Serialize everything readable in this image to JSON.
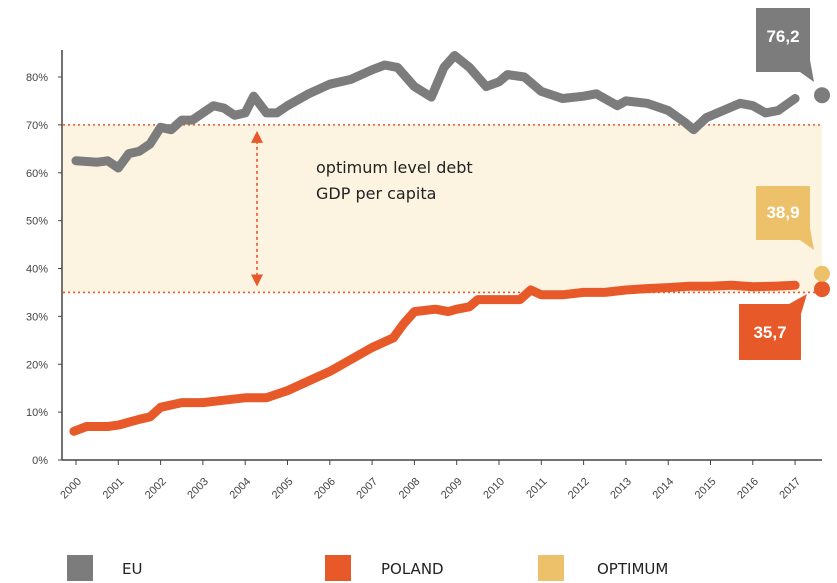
{
  "chart_data": {
    "type": "line",
    "title": "",
    "xlabel": "",
    "ylabel": "",
    "ylim": [
      0,
      80
    ],
    "y_ticks": [
      {
        "value": 0,
        "label": "0%"
      },
      {
        "value": 10,
        "label": "10%"
      },
      {
        "value": 20,
        "label": "20%"
      },
      {
        "value": 30,
        "label": "30%"
      },
      {
        "value": 40,
        "label": "40%"
      },
      {
        "value": 50,
        "label": "50%"
      },
      {
        "value": 60,
        "label": "60%"
      },
      {
        "value": 70,
        "label": "70%"
      },
      {
        "value": 80,
        "label": "80%"
      }
    ],
    "x_ticks": [
      "2000",
      "2001",
      "2002",
      "2003",
      "2004",
      "2005",
      "2006",
      "2007",
      "2008",
      "2009",
      "2010",
      "2011",
      "2012",
      "2013",
      "2014",
      "2015",
      "2016",
      "2017"
    ],
    "xlim": [
      2000,
      2017.5
    ],
    "grid": false,
    "legend_position": "bottom",
    "optimum_band": {
      "low": 35,
      "high": 70,
      "color": "#fdf3e1",
      "line_color": "#e8592a"
    },
    "annotation": {
      "lines": [
        "optimum level debt",
        "GDP per capita"
      ]
    },
    "series": [
      {
        "name": "EU",
        "color": "#7c7c7c",
        "points": [
          [
            2000.0,
            62.5
          ],
          [
            2000.5,
            62.2
          ],
          [
            2000.75,
            62.5
          ],
          [
            2001.0,
            61.0
          ],
          [
            2001.25,
            64.0
          ],
          [
            2001.5,
            64.5
          ],
          [
            2001.75,
            66.0
          ],
          [
            2002.0,
            69.5
          ],
          [
            2002.25,
            69.0
          ],
          [
            2002.5,
            71.0
          ],
          [
            2002.75,
            71.0
          ],
          [
            2003.0,
            72.5
          ],
          [
            2003.25,
            74.0
          ],
          [
            2003.5,
            73.5
          ],
          [
            2003.75,
            72.0
          ],
          [
            2004.0,
            72.5
          ],
          [
            2004.2,
            76.0
          ],
          [
            2004.5,
            72.5
          ],
          [
            2004.75,
            72.5
          ],
          [
            2005.0,
            74.0
          ],
          [
            2005.5,
            76.5
          ],
          [
            2006.0,
            78.5
          ],
          [
            2006.5,
            79.5
          ],
          [
            2007.0,
            81.5
          ],
          [
            2007.3,
            82.5
          ],
          [
            2007.6,
            82.0
          ],
          [
            2008.0,
            78.0
          ],
          [
            2008.4,
            75.8
          ],
          [
            2008.7,
            82.0
          ],
          [
            2008.95,
            84.5
          ],
          [
            2009.3,
            82.0
          ],
          [
            2009.7,
            78.0
          ],
          [
            2010.0,
            79.0
          ],
          [
            2010.2,
            80.5
          ],
          [
            2010.6,
            80.0
          ],
          [
            2011.0,
            77.0
          ],
          [
            2011.5,
            75.5
          ],
          [
            2012.0,
            76.0
          ],
          [
            2012.3,
            76.5
          ],
          [
            2012.8,
            74.0
          ],
          [
            2013.0,
            75.0
          ],
          [
            2013.5,
            74.5
          ],
          [
            2014.0,
            73.0
          ],
          [
            2014.4,
            70.5
          ],
          [
            2014.6,
            69.0
          ],
          [
            2014.9,
            71.5
          ],
          [
            2015.3,
            73.0
          ],
          [
            2015.7,
            74.5
          ],
          [
            2016.0,
            74.0
          ],
          [
            2016.3,
            72.5
          ],
          [
            2016.6,
            73.0
          ],
          [
            2017.0,
            75.5
          ]
        ],
        "last_value": 76.2,
        "last_value_label": "76,2"
      },
      {
        "name": "POLAND",
        "color": "#e8592a",
        "points": [
          [
            1999.95,
            6.0
          ],
          [
            2000.25,
            7.0
          ],
          [
            2000.75,
            7.0
          ],
          [
            2001.0,
            7.3
          ],
          [
            2001.5,
            8.5
          ],
          [
            2001.75,
            9.0
          ],
          [
            2002.0,
            11.0
          ],
          [
            2002.5,
            12.0
          ],
          [
            2003.0,
            12.0
          ],
          [
            2003.5,
            12.5
          ],
          [
            2004.0,
            13.0
          ],
          [
            2004.5,
            13.0
          ],
          [
            2005.0,
            14.5
          ],
          [
            2005.5,
            16.5
          ],
          [
            2006.0,
            18.5
          ],
          [
            2006.5,
            21.0
          ],
          [
            2007.0,
            23.5
          ],
          [
            2007.5,
            25.5
          ],
          [
            2007.75,
            28.5
          ],
          [
            2008.0,
            31.0
          ],
          [
            2008.5,
            31.5
          ],
          [
            2008.8,
            31.0
          ],
          [
            2009.0,
            31.5
          ],
          [
            2009.3,
            32.0
          ],
          [
            2009.5,
            33.5
          ],
          [
            2010.0,
            33.5
          ],
          [
            2010.5,
            33.5
          ],
          [
            2010.75,
            35.5
          ],
          [
            2011.0,
            34.5
          ],
          [
            2011.5,
            34.5
          ],
          [
            2012.0,
            35.0
          ],
          [
            2012.5,
            35.0
          ],
          [
            2013.0,
            35.5
          ],
          [
            2013.5,
            35.8
          ],
          [
            2014.0,
            36.0
          ],
          [
            2014.5,
            36.3
          ],
          [
            2015.0,
            36.3
          ],
          [
            2015.5,
            36.5
          ],
          [
            2016.0,
            36.2
          ],
          [
            2016.5,
            36.3
          ],
          [
            2017.0,
            36.5
          ]
        ],
        "last_value": 35.7,
        "last_value_label": "35,7"
      },
      {
        "name": "OPTIMUM",
        "color": "#ecc16a",
        "points": [],
        "last_value": 38.9,
        "last_value_label": "38,9"
      }
    ]
  },
  "legend": [
    {
      "name": "EU",
      "color": "#7c7c7c"
    },
    {
      "name": "POLAND",
      "color": "#e8592a"
    },
    {
      "name": "OPTIMUM",
      "color": "#ecc16a"
    }
  ]
}
